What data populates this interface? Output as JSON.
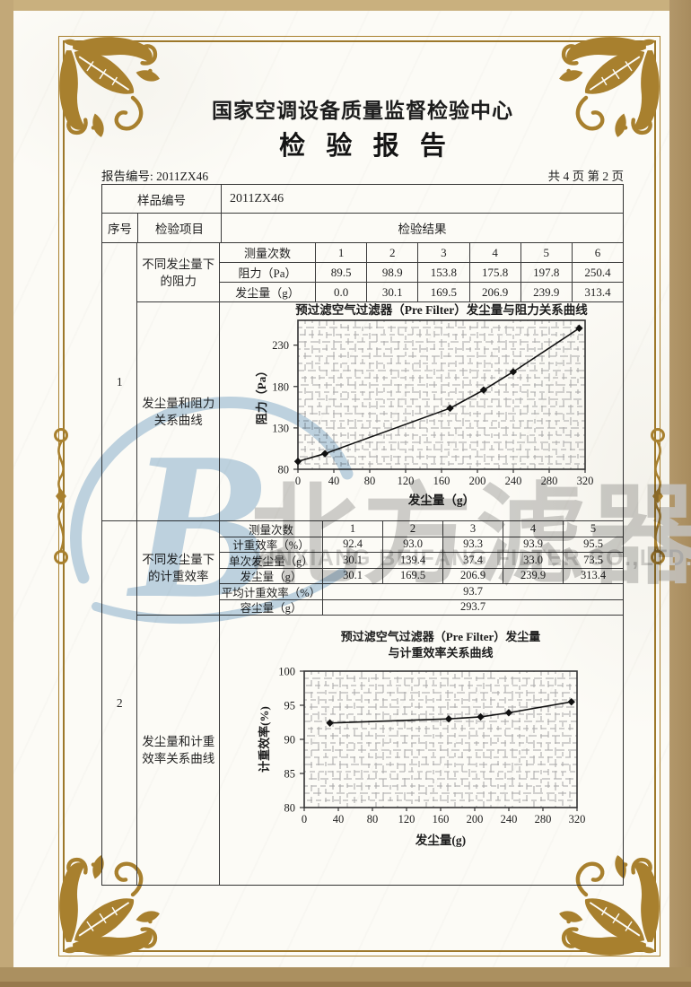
{
  "header": {
    "org": "国家空调设备质量监督检验中心",
    "title": "检 验 报 告",
    "report_no": "报告编号: 2011ZX46",
    "page_info": "共 4 页 第 2 页"
  },
  "table": {
    "sample_no_label": "样品编号",
    "sample_no_value": "2011ZX46",
    "col_seq": "序号",
    "col_item": "检验项目",
    "col_result": "检验结果",
    "section1": {
      "seq": "1",
      "item_data": "不同发尘量下的阻力",
      "item_chart": "发尘量和阻力关系曲线",
      "subtable": {
        "rows": [
          {
            "label": "测量次数",
            "values": [
              "1",
              "2",
              "3",
              "4",
              "5",
              "6"
            ]
          },
          {
            "label": "阻力（Pa）",
            "values": [
              "89.5",
              "98.9",
              "153.8",
              "175.8",
              "197.8",
              "250.4"
            ]
          },
          {
            "label": "发尘量（g）",
            "values": [
              "0.0",
              "30.1",
              "169.5",
              "206.9",
              "239.9",
              "313.4"
            ]
          }
        ]
      }
    },
    "section2": {
      "seq": "2",
      "item_data": "不同发尘量下的计重效率",
      "item_chart": "发尘量和计重效率关系曲线",
      "subtable": {
        "rows": [
          {
            "label": "测量次数",
            "values": [
              "1",
              "2",
              "3",
              "4",
              "5"
            ]
          },
          {
            "label": "计重效率（%）",
            "values": [
              "92.4",
              "93.0",
              "93.3",
              "93.9",
              "95.5"
            ]
          },
          {
            "label": "单次发尘量（g）",
            "values": [
              "30.1",
              "139.4",
              "37.4",
              "33.0",
              "73.5"
            ]
          },
          {
            "label": "发尘量（g）",
            "values": [
              "30.1",
              "169.5",
              "206.9",
              "239.9",
              "313.4"
            ]
          },
          {
            "label": "平均计重效率（%）",
            "merged": "93.7"
          },
          {
            "label": "容尘量（g）",
            "merged": "293.7"
          }
        ]
      }
    }
  },
  "chart_data": [
    {
      "type": "line",
      "title": "预过滤空气过滤器（Pre Filter）发尘量与阻力关系曲线",
      "xlabel": "发尘量（g）",
      "ylabel": "阻力（Pa）",
      "x": [
        0,
        30.1,
        169.5,
        206.9,
        239.9,
        313.4
      ],
      "y": [
        89.5,
        98.9,
        153.8,
        175.8,
        197.8,
        250.4
      ],
      "xlim": [
        0,
        320
      ],
      "ylim": [
        80,
        260
      ],
      "xticks": [
        0,
        40,
        80,
        120,
        160,
        200,
        240,
        280,
        320
      ],
      "yticks": [
        80,
        130,
        180,
        230
      ],
      "grid": true,
      "marker": "diamond",
      "legend": "none"
    },
    {
      "type": "line",
      "title": [
        "预过滤空气过滤器（Pre Filter）发尘量",
        "与计重效率关系曲线"
      ],
      "xlabel": "发尘量(g)",
      "ylabel": "计重效率(%)",
      "x": [
        30.1,
        169.5,
        206.9,
        239.9,
        313.4
      ],
      "y": [
        92.4,
        93.0,
        93.3,
        93.9,
        95.5
      ],
      "xlim": [
        0,
        320
      ],
      "ylim": [
        80,
        100
      ],
      "xticks": [
        0,
        40,
        80,
        120,
        160,
        200,
        240,
        280,
        320
      ],
      "yticks": [
        80,
        85,
        90,
        95,
        100
      ],
      "grid": true,
      "marker": "diamond",
      "legend": "none"
    }
  ],
  "watermark": {
    "logo_letter": "B",
    "cn": "北方滤器",
    "en": "XINXIANG BEIFANG FILTER CO.,LTD."
  },
  "colors": {
    "frame_gold": "#a9812f",
    "paper": "#fcfbf6",
    "watermark_blue": "#bdd3e6",
    "watermark_gray": "#c5c5c5",
    "line_black": "#111111"
  }
}
